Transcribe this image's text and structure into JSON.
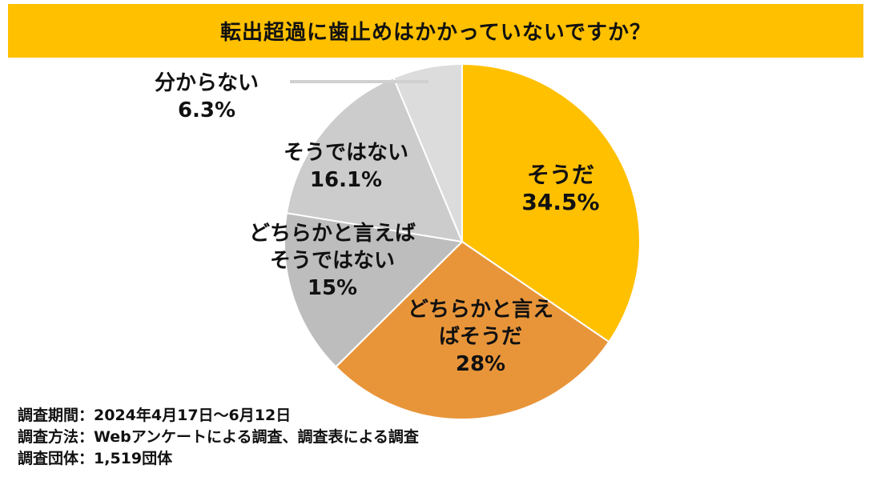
{
  "title": "転出超過に歯止めはかかっていないですか？",
  "chart_data": {
    "type": "pie",
    "slices": [
      {
        "label_lines": [
          "そうだ"
        ],
        "value": 34.5,
        "value_label": "34.5%",
        "color": "#FFC000"
      },
      {
        "label_lines": [
          "どちらかと言え",
          "ばそうだ"
        ],
        "value": 28,
        "value_label": "28%",
        "color": "#E8953A"
      },
      {
        "label_lines": [
          "どちらかと言えば",
          "そうではない"
        ],
        "value": 15,
        "value_label": "15%",
        "color": "#BDBDBD"
      },
      {
        "label_lines": [
          "そうではない"
        ],
        "value": 16.1,
        "value_label": "16.1%",
        "color": "#CCCCCC"
      },
      {
        "label_lines": [
          "分からない"
        ],
        "value": 6.3,
        "value_label": "6.3%",
        "color": "#DCDCDC"
      }
    ]
  },
  "footer": {
    "period": "調査期間：2024年4月17日～6月12日",
    "method": "調査方法：Webアンケートによる調査、調査表による調査",
    "count": "調査団体：1,519団体"
  }
}
